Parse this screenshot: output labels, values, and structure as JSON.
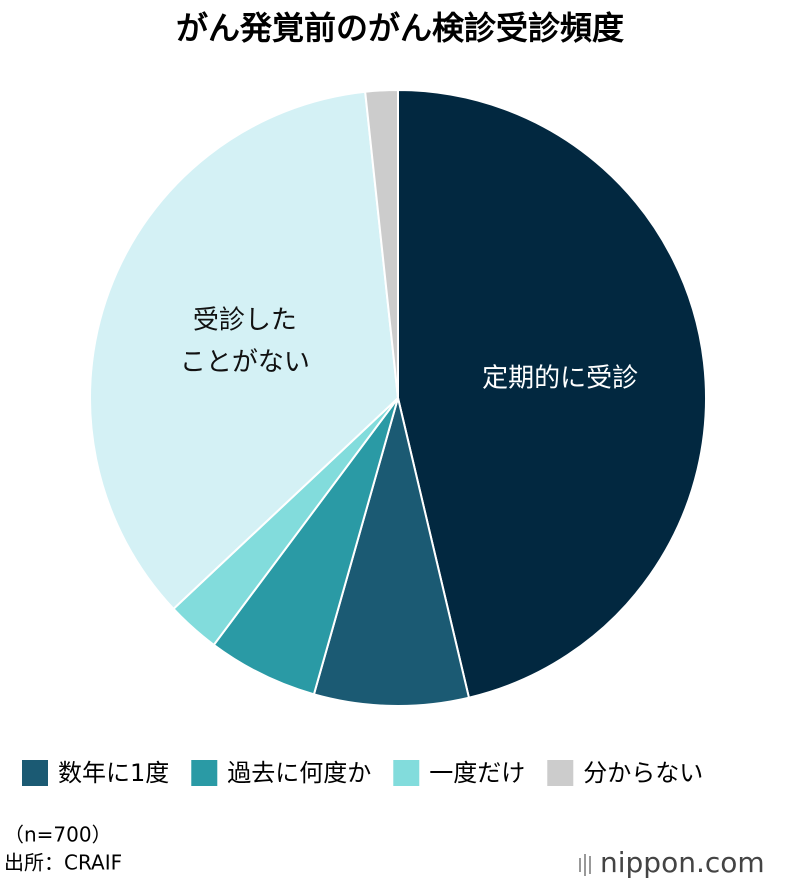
{
  "chart_data": {
    "type": "pie",
    "title": "がん発覚前のがん検診受診頻度",
    "categories": [
      "定期的に受診",
      "数年に1度",
      "過去に何度か",
      "一度だけ",
      "受診した\nことがない",
      "分からない"
    ],
    "values": [
      46.3,
      8.1,
      5.8,
      2.8,
      35.3,
      1.7
    ],
    "colors": [
      "#022840",
      "#1b5a73",
      "#2a9aa5",
      "#82dcdc",
      "#d4f1f5",
      "#cccccc"
    ],
    "label_inside": [
      true,
      false,
      false,
      false,
      true,
      false
    ],
    "note": "（n=700）",
    "source": "出所：CRAIF",
    "logo": "nippon.com"
  }
}
